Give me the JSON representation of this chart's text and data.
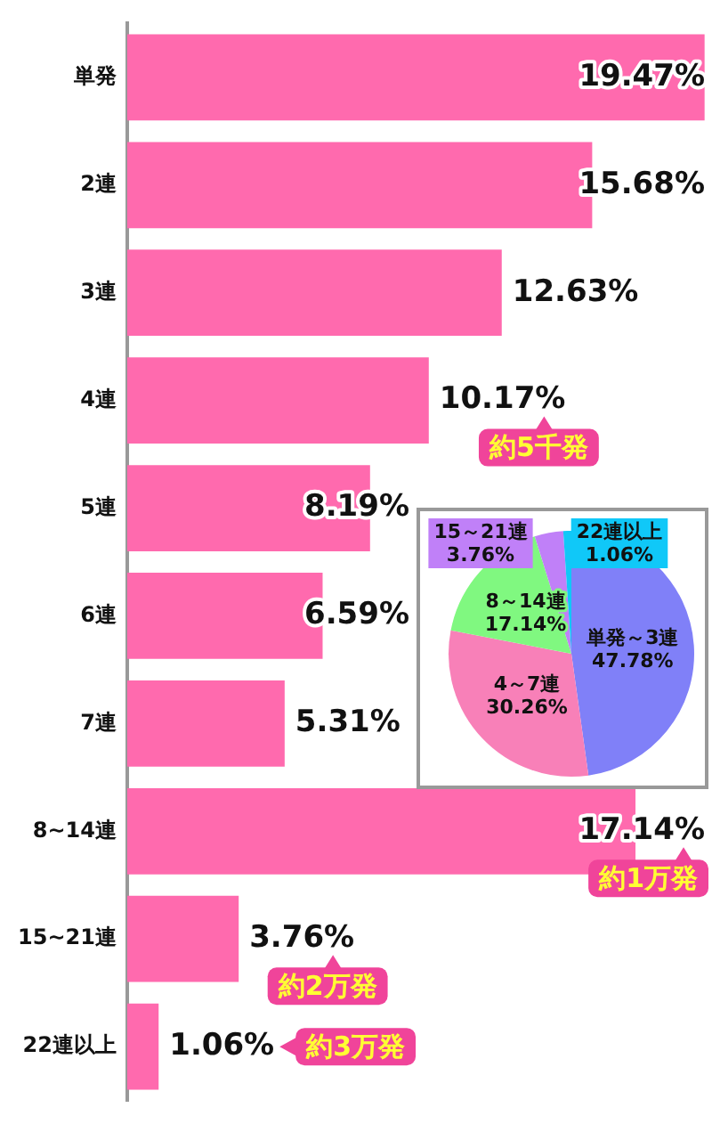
{
  "chart_data": [
    {
      "type": "bar",
      "orientation": "horizontal",
      "categories": [
        "単発",
        "2連",
        "3連",
        "4連",
        "5連",
        "6連",
        "7連",
        "8~14連",
        "15~21連",
        "22連以上"
      ],
      "values": [
        19.47,
        15.68,
        12.63,
        10.17,
        8.19,
        6.59,
        5.31,
        17.14,
        3.76,
        1.06
      ],
      "value_labels": [
        "19.47%",
        "15.68%",
        "12.63%",
        "10.17%",
        "8.19%",
        "6.59%",
        "5.31%",
        "17.14%",
        "3.76%",
        "1.06%"
      ],
      "color": "#ff6aae",
      "xlim": [
        0,
        19.6
      ],
      "tick_labels": "y",
      "legend": false,
      "annotations": [
        {
          "text": "約5千発",
          "x": 10.17,
          "y": "4連"
        },
        {
          "text": "約1万発",
          "x": 17.14,
          "y": "8~14連"
        },
        {
          "text": "約2万発",
          "x": 3.76,
          "y": "15~21連"
        },
        "約3万発"
      ]
    },
    {
      "type": "pie",
      "categories": [
        "単発～3連",
        "4～7連",
        "8～14連",
        "15～21連",
        "22連以上"
      ],
      "values": [
        47.78,
        30.26,
        17.14,
        3.76,
        1.06
      ],
      "value_labels": [
        "47.78%",
        "30.26%",
        "17.14%",
        "3.76%",
        "1.06%"
      ],
      "colors": [
        "#8080f8",
        "#f880b8",
        "#80f880",
        "#c080f8",
        "#10c8f8"
      ],
      "legend": false
    }
  ]
}
